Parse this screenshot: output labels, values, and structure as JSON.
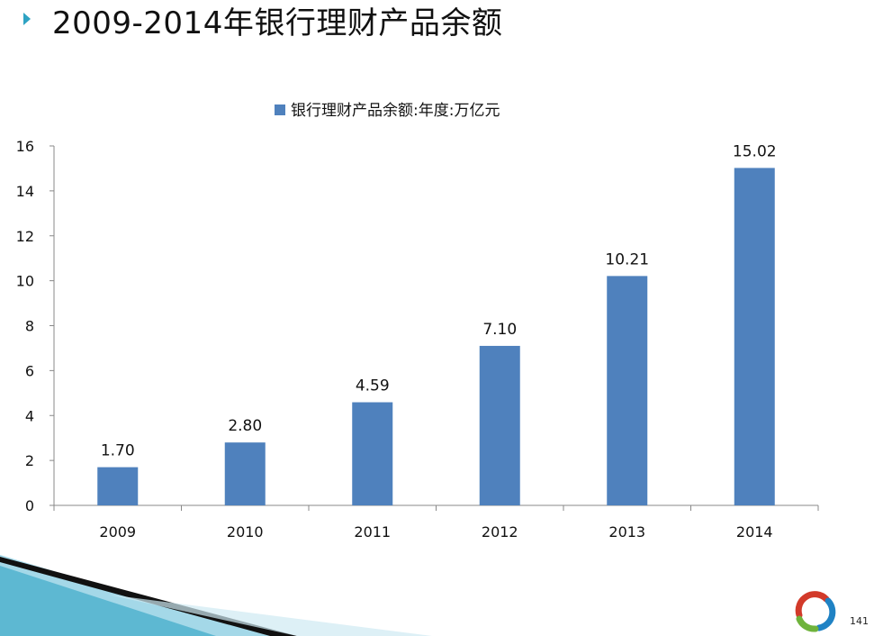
{
  "slide": {
    "title": "2009-2014年银行理财产品余额",
    "page_number": "141"
  },
  "colors": {
    "bar": "#4f81bd",
    "title_bullet": "#2ea3c3",
    "logo_ring": [
      "#d23a2a",
      "#1f82c4",
      "#6fb33c"
    ],
    "ribbon_blue": "#2ea3c3"
  },
  "chart_data": {
    "type": "bar",
    "categories": [
      "2009",
      "2010",
      "2011",
      "2012",
      "2013",
      "2014"
    ],
    "series": [
      {
        "name": "银行理财产品余额:年度:万亿元",
        "values": [
          1.7,
          2.8,
          4.59,
          7.1,
          10.21,
          15.02
        ]
      }
    ],
    "data_labels": [
      "1.70",
      "2.80",
      "4.59",
      "7.10",
      "10.21",
      "15.02"
    ],
    "ylim": [
      0,
      16
    ],
    "yticks": [
      "0",
      "2",
      "4",
      "6",
      "8",
      "10",
      "12",
      "14",
      "16"
    ],
    "legend_position": "top",
    "grid": false
  }
}
